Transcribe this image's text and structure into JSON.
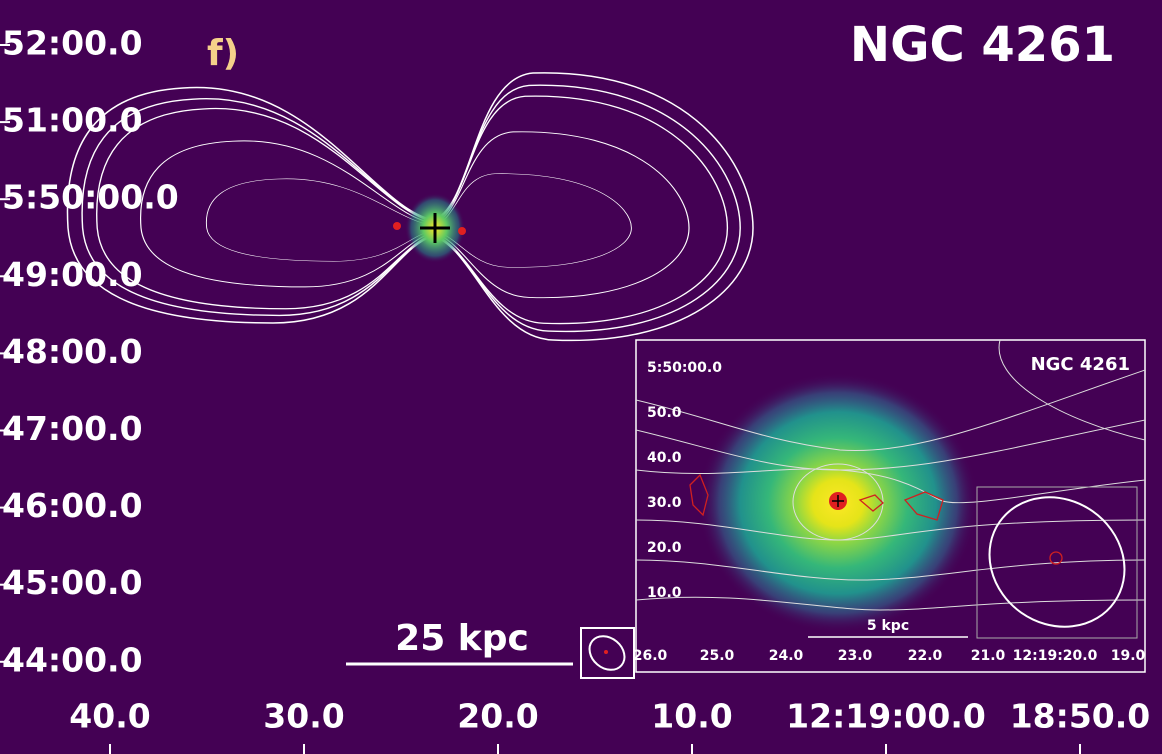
{
  "panel_label": "f)",
  "title": "NGC 4261",
  "y_ticks": [
    "52:00.0",
    "51:00.0",
    "5:50:00.0",
    "49:00.0",
    "48:00.0",
    "47:00.0",
    "46:00.0",
    "45:00.0",
    "44:00.0"
  ],
  "x_ticks": [
    "40.0",
    "30.0",
    "20.0",
    "10.0",
    "12:19:00.0",
    "18:50.0"
  ],
  "scale_bar": "25 kpc",
  "inset": {
    "title": "NGC 4261",
    "y_ticks": [
      "5:50:00.0",
      "50.0",
      "40.0",
      "30.0",
      "20.0",
      "10.0"
    ],
    "x_ticks": [
      "26.0",
      "25.0",
      "24.0",
      "23.0",
      "22.0",
      "21.0",
      "12:19:20.0",
      "19.0"
    ],
    "scale_bar": "5 kpc"
  }
}
